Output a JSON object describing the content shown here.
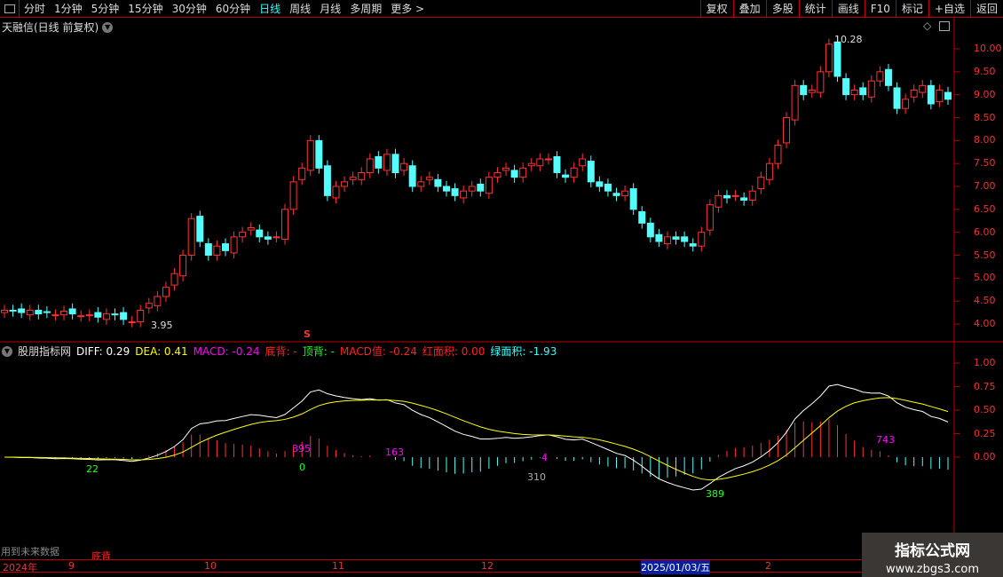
{
  "toolbar": {
    "periods": [
      "分时",
      "1分钟",
      "5分钟",
      "15分钟",
      "30分钟",
      "60分钟",
      "日线",
      "周线",
      "月线",
      "多周期",
      "更多 >"
    ],
    "active": "日线",
    "right_buttons": [
      "复权",
      "叠加",
      "多股",
      "统计",
      "画线",
      "F10",
      "标记",
      "+自选",
      "返回"
    ]
  },
  "chart_title": "天融信(日线 前复权)",
  "price_axis": [
    "10.00",
    "9.50",
    "9.00",
    "8.50",
    "8.00",
    "7.50",
    "7.00",
    "6.50",
    "6.00",
    "5.50",
    "5.00",
    "4.50",
    "4.00"
  ],
  "high_label": "10.28",
  "low_label": "3.95",
  "signal_mark": "S",
  "closes": [
    4.3,
    4.28,
    4.25,
    4.3,
    4.22,
    4.25,
    4.2,
    4.28,
    4.22,
    4.18,
    4.2,
    4.15,
    4.22,
    4.2,
    4.1,
    4.05,
    4.3,
    4.45,
    4.6,
    4.8,
    5.1,
    5.5,
    6.3,
    5.8,
    5.5,
    5.7,
    5.6,
    5.9,
    6.0,
    6.1,
    5.9,
    5.85,
    5.9,
    6.5,
    7.1,
    7.4,
    8.0,
    7.4,
    6.8,
    7.0,
    7.1,
    7.2,
    7.3,
    7.6,
    7.4,
    7.7,
    7.3,
    7.5,
    7.0,
    7.1,
    7.2,
    7.0,
    6.9,
    6.8,
    6.9,
    7.0,
    6.9,
    7.2,
    7.3,
    7.4,
    7.2,
    7.4,
    7.5,
    7.6,
    7.6,
    7.3,
    7.2,
    7.4,
    7.6,
    7.1,
    7.0,
    6.9,
    6.8,
    6.9,
    6.5,
    6.2,
    5.9,
    5.8,
    5.9,
    5.85,
    5.8,
    5.7,
    6.0,
    6.6,
    6.8,
    6.75,
    6.8,
    6.7,
    6.9,
    7.2,
    7.5,
    7.9,
    8.5,
    9.2,
    9.0,
    9.1,
    9.5,
    10.1,
    9.4,
    9.0,
    9.1,
    9.0,
    9.3,
    9.5,
    9.2,
    8.7,
    8.9,
    9.1,
    9.2,
    8.8,
    9.1,
    8.9
  ],
  "indicator": {
    "name": "股朋指标网",
    "diff": "DIFF: 0.29",
    "dea": "DEA: 0.41",
    "macd": "MACD: -0.24",
    "bottom_div": "底背: -",
    "top_div": "顶背: -",
    "macd_val": "MACD值: -0.24",
    "red_area": "红面积: 0.00",
    "green_area": "绿面积: -1.93",
    "axis": [
      "1.00",
      "0.75",
      "0.50",
      "0.25",
      "0.00"
    ],
    "annotations": [
      "22",
      "0",
      "395",
      "163",
      "4",
      "310",
      "389",
      "743"
    ]
  },
  "footer": {
    "future_data": "用到未来数据",
    "bottom_div": "底背"
  },
  "time_axis": [
    "2024年",
    "9",
    "10",
    "11",
    "12",
    "2025/01/03/五",
    "2"
  ],
  "watermark": {
    "title": "指标公式网",
    "url": "www.zbgs3.com"
  },
  "colors": {
    "up": "#ff3333",
    "down": "#54fcfc",
    "diff": "#ffffff",
    "dea": "#ffff00",
    "border": "#bb0000"
  }
}
